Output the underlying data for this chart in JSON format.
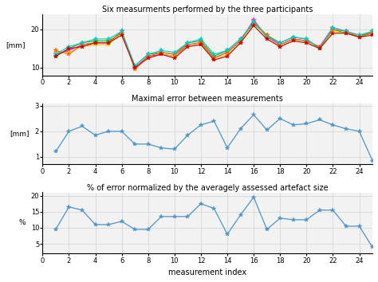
{
  "title1": "Six measurments performed by the three participants",
  "title2": "Maximal error between measurements",
  "title3": "% of error normalized by the averagely assessed artefact size",
  "ylabel1": "[mm]",
  "ylabel2": "[mm]",
  "ylabel3": "%",
  "xlabel": "measurement index",
  "x": [
    1,
    2,
    3,
    4,
    5,
    6,
    7,
    8,
    9,
    10,
    11,
    12,
    13,
    14,
    15,
    16,
    17,
    18,
    19,
    20,
    21,
    22,
    23,
    24,
    25
  ],
  "series1": [
    [
      13.5,
      14.5,
      16.0,
      16.5,
      16.5,
      19.5,
      10.0,
      13.0,
      13.5,
      13.0,
      16.0,
      16.5,
      12.5,
      14.0,
      17.0,
      22.5,
      18.0,
      16.0,
      17.5,
      17.0,
      15.5,
      20.5,
      19.5,
      18.5,
      19.0
    ],
    [
      13.0,
      15.0,
      16.5,
      17.0,
      17.0,
      19.0,
      10.5,
      13.5,
      14.0,
      13.5,
      16.5,
      17.0,
      13.0,
      14.5,
      17.5,
      21.5,
      18.5,
      16.5,
      18.0,
      17.5,
      15.0,
      20.0,
      19.0,
      18.0,
      19.5
    ],
    [
      14.0,
      14.0,
      15.5,
      16.0,
      16.0,
      19.0,
      10.0,
      12.5,
      13.5,
      13.0,
      15.5,
      16.0,
      12.0,
      13.5,
      16.5,
      21.0,
      17.5,
      15.5,
      17.0,
      16.5,
      15.0,
      19.5,
      19.0,
      18.5,
      19.5
    ],
    [
      14.5,
      13.5,
      16.0,
      16.5,
      16.5,
      19.5,
      9.5,
      13.0,
      14.0,
      13.5,
      16.0,
      16.5,
      12.5,
      14.0,
      17.0,
      22.0,
      18.5,
      16.0,
      17.5,
      17.0,
      15.5,
      20.0,
      19.5,
      18.0,
      19.0
    ],
    [
      13.5,
      15.5,
      16.5,
      17.5,
      17.5,
      19.5,
      10.5,
      13.5,
      14.5,
      14.0,
      16.5,
      17.5,
      13.5,
      14.5,
      17.5,
      22.0,
      18.0,
      16.5,
      18.0,
      17.5,
      15.0,
      20.5,
      19.5,
      18.5,
      19.5
    ],
    [
      13.0,
      15.0,
      15.5,
      16.5,
      16.5,
      18.5,
      10.0,
      12.5,
      13.5,
      12.5,
      15.5,
      16.0,
      12.0,
      13.0,
      16.5,
      21.0,
      17.5,
      15.5,
      17.0,
      16.5,
      15.0,
      19.0,
      19.0,
      18.0,
      18.5
    ]
  ],
  "series_colors": [
    "#ff00ff",
    "#00bb00",
    "#ddcc00",
    "#ff6600",
    "#00cccc",
    "#cc0000"
  ],
  "series2": [
    1.2,
    2.0,
    2.2,
    1.85,
    2.0,
    2.0,
    1.5,
    1.5,
    1.35,
    1.3,
    1.85,
    2.25,
    2.4,
    1.35,
    2.1,
    2.65,
    2.05,
    2.5,
    2.25,
    2.3,
    2.45,
    2.25,
    2.1,
    2.0,
    0.85
  ],
  "series3": [
    9.5,
    16.5,
    15.5,
    11.0,
    11.0,
    12.0,
    9.5,
    9.5,
    13.5,
    13.5,
    13.5,
    17.5,
    16.0,
    8.0,
    14.0,
    19.5,
    9.5,
    13.0,
    12.5,
    12.5,
    15.5,
    15.5,
    10.5,
    10.5,
    4.0
  ],
  "ylim1": [
    8,
    24
  ],
  "yticks1": [
    10,
    20
  ],
  "ylim2": [
    0.7,
    3.1
  ],
  "yticks2": [
    1,
    2,
    3
  ],
  "ylim3": [
    2,
    21
  ],
  "yticks3": [
    5,
    10,
    15,
    20
  ],
  "xticks": [
    0,
    2,
    4,
    6,
    8,
    10,
    12,
    14,
    16,
    18,
    20,
    22,
    24
  ],
  "line_color": "#4d94c8",
  "bg_color": "#f2f2f2",
  "grid_color": "#d0d0d0"
}
